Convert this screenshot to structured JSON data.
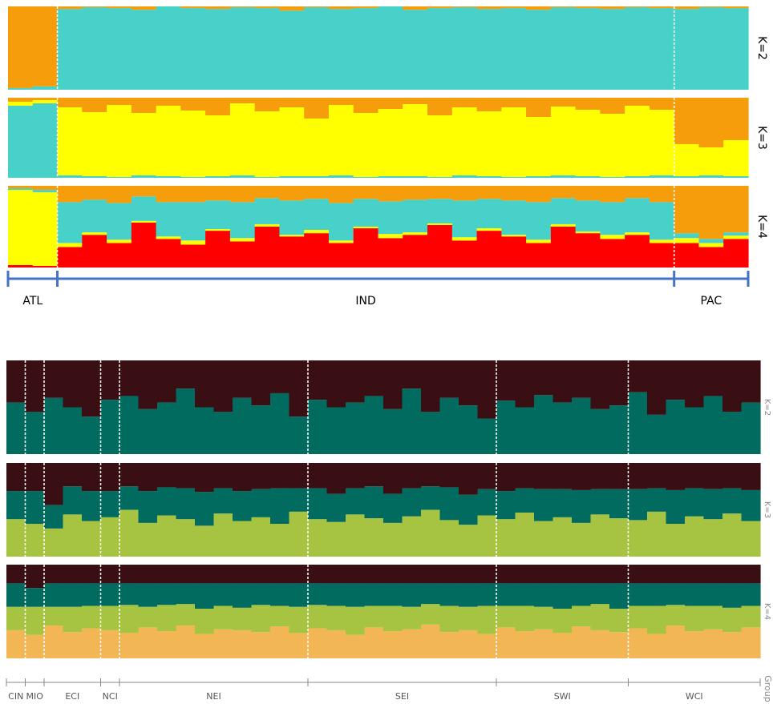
{
  "chart_data": [
    {
      "type": "bar",
      "group_axis_color": "#4472c4",
      "categories": [
        "ATL",
        "ATL",
        "IND",
        "IND",
        "IND",
        "IND",
        "IND",
        "IND",
        "IND",
        "IND",
        "IND",
        "IND",
        "IND",
        "IND",
        "IND",
        "IND",
        "IND",
        "IND",
        "IND",
        "IND",
        "IND",
        "IND",
        "IND",
        "IND",
        "IND",
        "IND",
        "IND",
        "PAC",
        "PAC",
        "PAC"
      ],
      "panels": [
        {
          "label": "K=2",
          "series": [
            {
              "color": "#48d1c8",
              "values": [
                0.02,
                0.04,
                0.97,
                0.99,
                0.98,
                0.96,
                1,
                0.98,
                0.97,
                0.99,
                0.98,
                0.95,
                0.99,
                0.97,
                0.98,
                1,
                0.96,
                0.98,
                0.99,
                0.97,
                0.98,
                0.96,
                0.99,
                0.98,
                0.97,
                0.99,
                0.98,
                0.97,
                0.99,
                0.98
              ]
            },
            {
              "color": "#f59d0a",
              "values": [
                0.98,
                0.96,
                0.03,
                0.01,
                0.02,
                0.04,
                0,
                0.02,
                0.03,
                0.01,
                0.02,
                0.05,
                0.01,
                0.03,
                0.02,
                0,
                0.04,
                0.02,
                0.01,
                0.03,
                0.02,
                0.04,
                0.01,
                0.02,
                0.03,
                0.01,
                0.02,
                0.03,
                0.01,
                0.02
              ]
            }
          ]
        },
        {
          "label": "K=3",
          "series": [
            {
              "color": "#48d1c8",
              "values": [
                0.9,
                0.93,
                0.03,
                0.02,
                0.01,
                0.03,
                0.02,
                0.01,
                0.02,
                0.03,
                0.01,
                0.02,
                0.02,
                0.03,
                0.01,
                0.02,
                0.02,
                0.01,
                0.03,
                0.02,
                0.01,
                0.02,
                0.03,
                0.02,
                0.01,
                0.02,
                0.03,
                0.02,
                0.03,
                0.02
              ]
            },
            {
              "color": "#ffff00",
              "values": [
                0.05,
                0.04,
                0.85,
                0.8,
                0.9,
                0.78,
                0.88,
                0.83,
                0.76,
                0.9,
                0.82,
                0.86,
                0.72,
                0.88,
                0.8,
                0.84,
                0.9,
                0.77,
                0.85,
                0.81,
                0.87,
                0.74,
                0.86,
                0.83,
                0.79,
                0.88,
                0.82,
                0.4,
                0.35,
                0.45
              ]
            },
            {
              "color": "#f59d0a",
              "values": [
                0.05,
                0.03,
                0.12,
                0.18,
                0.09,
                0.19,
                0.1,
                0.16,
                0.22,
                0.07,
                0.17,
                0.12,
                0.26,
                0.09,
                0.19,
                0.14,
                0.08,
                0.22,
                0.12,
                0.17,
                0.12,
                0.24,
                0.11,
                0.15,
                0.2,
                0.1,
                0.15,
                0.58,
                0.62,
                0.53
              ]
            }
          ]
        },
        {
          "label": "K=4",
          "series": [
            {
              "color": "#ff0000",
              "values": [
                0.03,
                0.02,
                0.25,
                0.4,
                0.3,
                0.55,
                0.35,
                0.28,
                0.45,
                0.32,
                0.5,
                0.38,
                0.42,
                0.3,
                0.48,
                0.36,
                0.4,
                0.52,
                0.33,
                0.45,
                0.38,
                0.3,
                0.5,
                0.42,
                0.35,
                0.4,
                0.3,
                0.3,
                0.25,
                0.35
              ]
            },
            {
              "color": "#ffff00",
              "values": [
                0.92,
                0.9,
                0.05,
                0.03,
                0.04,
                0.02,
                0.03,
                0.05,
                0.02,
                0.04,
                0.03,
                0.02,
                0.04,
                0.03,
                0.02,
                0.05,
                0.03,
                0.02,
                0.04,
                0.03,
                0.02,
                0.04,
                0.03,
                0.02,
                0.05,
                0.03,
                0.04,
                0.06,
                0.05,
                0.04
              ]
            },
            {
              "color": "#48d1c8",
              "values": [
                0.02,
                0.03,
                0.5,
                0.4,
                0.45,
                0.3,
                0.42,
                0.47,
                0.35,
                0.44,
                0.32,
                0.42,
                0.38,
                0.46,
                0.34,
                0.4,
                0.4,
                0.3,
                0.45,
                0.36,
                0.42,
                0.46,
                0.32,
                0.38,
                0.4,
                0.42,
                0.46,
                0.06,
                0.05,
                0.04
              ]
            },
            {
              "color": "#f59d0a",
              "values": [
                0.03,
                0.05,
                0.2,
                0.17,
                0.21,
                0.13,
                0.2,
                0.2,
                0.18,
                0.2,
                0.15,
                0.18,
                0.16,
                0.21,
                0.16,
                0.19,
                0.17,
                0.16,
                0.18,
                0.16,
                0.18,
                0.2,
                0.15,
                0.18,
                0.2,
                0.15,
                0.2,
                0.58,
                0.65,
                0.57
              ]
            }
          ]
        }
      ]
    },
    {
      "type": "bar",
      "group_axis_color": "#888888",
      "group_axis_label": "Group",
      "categories": [
        "CIN",
        "MIO",
        "ECI",
        "ECI",
        "ECI",
        "NCI",
        "NEI",
        "NEI",
        "NEI",
        "NEI",
        "NEI",
        "NEI",
        "NEI",
        "NEI",
        "NEI",
        "NEI",
        "SEI",
        "SEI",
        "SEI",
        "SEI",
        "SEI",
        "SEI",
        "SEI",
        "SEI",
        "SEI",
        "SEI",
        "SWI",
        "SWI",
        "SWI",
        "SWI",
        "SWI",
        "SWI",
        "SWI",
        "WCI",
        "WCI",
        "WCI",
        "WCI",
        "WCI",
        "WCI",
        "WCI"
      ],
      "panels": [
        {
          "label": "K=2",
          "series": [
            {
              "color": "#006b5e",
              "values": [
                0.55,
                0.45,
                0.6,
                0.5,
                0.4,
                0.58,
                0.62,
                0.48,
                0.55,
                0.7,
                0.5,
                0.45,
                0.6,
                0.52,
                0.65,
                0.4,
                0.58,
                0.5,
                0.55,
                0.62,
                0.48,
                0.7,
                0.45,
                0.6,
                0.52,
                0.38,
                0.57,
                0.5,
                0.63,
                0.55,
                0.6,
                0.48,
                0.52,
                0.66,
                0.42,
                0.58,
                0.5,
                0.62,
                0.45,
                0.55
              ]
            },
            {
              "color": "#3a0f14",
              "values": [
                0.45,
                0.55,
                0.4,
                0.5,
                0.6,
                0.42,
                0.38,
                0.52,
                0.45,
                0.3,
                0.5,
                0.55,
                0.4,
                0.48,
                0.35,
                0.6,
                0.42,
                0.5,
                0.45,
                0.38,
                0.52,
                0.3,
                0.55,
                0.4,
                0.48,
                0.62,
                0.43,
                0.5,
                0.37,
                0.45,
                0.4,
                0.52,
                0.48,
                0.34,
                0.58,
                0.42,
                0.5,
                0.38,
                0.55,
                0.45
              ]
            }
          ]
        },
        {
          "label": "K=3",
          "series": [
            {
              "color": "#a6c441",
              "values": [
                0.4,
                0.35,
                0.3,
                0.45,
                0.38,
                0.42,
                0.5,
                0.36,
                0.44,
                0.4,
                0.33,
                0.46,
                0.38,
                0.42,
                0.35,
                0.48,
                0.4,
                0.37,
                0.45,
                0.41,
                0.36,
                0.43,
                0.5,
                0.39,
                0.34,
                0.44,
                0.4,
                0.47,
                0.38,
                0.42,
                0.36,
                0.45,
                0.41,
                0.39,
                0.48,
                0.35,
                0.43,
                0.4,
                0.46,
                0.38
              ]
            },
            {
              "color": "#006b5e",
              "values": [
                0.3,
                0.35,
                0.25,
                0.3,
                0.32,
                0.28,
                0.25,
                0.34,
                0.3,
                0.33,
                0.36,
                0.27,
                0.32,
                0.3,
                0.38,
                0.25,
                0.33,
                0.3,
                0.28,
                0.34,
                0.31,
                0.3,
                0.25,
                0.35,
                0.32,
                0.28,
                0.3,
                0.26,
                0.34,
                0.3,
                0.35,
                0.27,
                0.31,
                0.33,
                0.25,
                0.36,
                0.3,
                0.32,
                0.27,
                0.33
              ]
            },
            {
              "color": "#3a0f14",
              "values": [
                0.3,
                0.3,
                0.45,
                0.25,
                0.3,
                0.3,
                0.25,
                0.3,
                0.26,
                0.27,
                0.31,
                0.27,
                0.3,
                0.28,
                0.27,
                0.27,
                0.27,
                0.33,
                0.27,
                0.25,
                0.33,
                0.27,
                0.25,
                0.26,
                0.34,
                0.28,
                0.3,
                0.27,
                0.28,
                0.28,
                0.29,
                0.28,
                0.28,
                0.28,
                0.27,
                0.29,
                0.27,
                0.28,
                0.27,
                0.29
              ]
            }
          ]
        },
        {
          "label": "K=4",
          "series": [
            {
              "color": "#f2b655",
              "values": [
                0.3,
                0.25,
                0.35,
                0.28,
                0.32,
                0.3,
                0.27,
                0.33,
                0.29,
                0.35,
                0.26,
                0.31,
                0.3,
                0.28,
                0.34,
                0.27,
                0.32,
                0.3,
                0.25,
                0.33,
                0.29,
                0.31,
                0.36,
                0.28,
                0.3,
                0.26,
                0.33,
                0.29,
                0.31,
                0.27,
                0.34,
                0.3,
                0.28,
                0.32,
                0.26,
                0.35,
                0.29,
                0.31,
                0.28,
                0.33
              ]
            },
            {
              "color": "#a6c441",
              "values": [
                0.25,
                0.3,
                0.2,
                0.27,
                0.24,
                0.26,
                0.3,
                0.22,
                0.28,
                0.23,
                0.27,
                0.25,
                0.24,
                0.29,
                0.22,
                0.28,
                0.25,
                0.26,
                0.3,
                0.23,
                0.27,
                0.24,
                0.22,
                0.28,
                0.25,
                0.3,
                0.23,
                0.27,
                0.24,
                0.26,
                0.22,
                0.28,
                0.25,
                0.24,
                0.3,
                0.22,
                0.27,
                0.25,
                0.26,
                0.23
              ]
            },
            {
              "color": "#006b5e",
              "values": [
                0.25,
                0.2,
                0.25,
                0.25,
                0.24,
                0.24,
                0.23,
                0.25,
                0.23,
                0.22,
                0.27,
                0.24,
                0.26,
                0.23,
                0.24,
                0.25,
                0.23,
                0.24,
                0.25,
                0.24,
                0.24,
                0.25,
                0.22,
                0.24,
                0.25,
                0.24,
                0.24,
                0.24,
                0.25,
                0.27,
                0.24,
                0.22,
                0.27,
                0.24,
                0.24,
                0.23,
                0.24,
                0.24,
                0.26,
                0.24
              ]
            },
            {
              "color": "#3a0f14",
              "values": [
                0.2,
                0.25,
                0.2,
                0.2,
                0.2,
                0.2,
                0.2,
                0.2,
                0.2,
                0.2,
                0.2,
                0.2,
                0.2,
                0.2,
                0.2,
                0.2,
                0.2,
                0.2,
                0.2,
                0.2,
                0.2,
                0.2,
                0.2,
                0.2,
                0.2,
                0.2,
                0.2,
                0.2,
                0.2,
                0.2,
                0.2,
                0.2,
                0.2,
                0.2,
                0.2,
                0.2,
                0.2,
                0.2,
                0.2,
                0.2
              ]
            }
          ]
        }
      ]
    }
  ]
}
